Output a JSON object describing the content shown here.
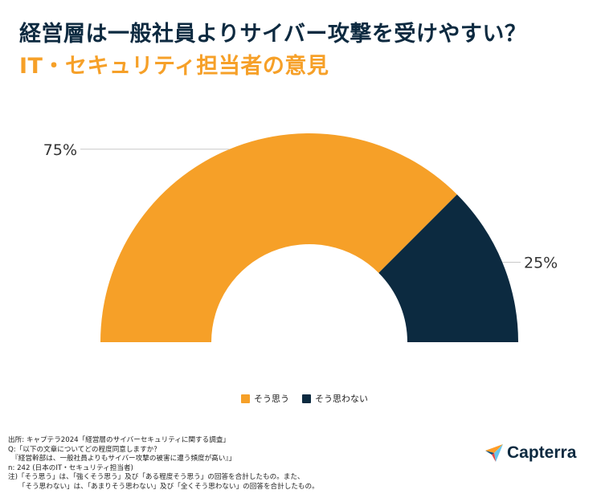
{
  "title": "経営層は一般社員よりサイバー攻撃を受けやすい？",
  "subtitle": "IT・セキュリティ担当者の意見",
  "colors": {
    "primary": "#f6a028",
    "secondary": "#0c2a40",
    "title": "#0d2a40",
    "leader": "#c9c9c9"
  },
  "chart_data": {
    "type": "pie",
    "variant": "semi-donut",
    "categories": [
      "そう思う",
      "そう思わない"
    ],
    "values": [
      75,
      25
    ],
    "labels": [
      "75%",
      "25%"
    ],
    "colors": [
      "#f6a028",
      "#0c2a40"
    ],
    "legend_position": "bottom-center"
  },
  "notes": [
    "出所: キャプテラ2024「経営層のサイバーセキュリティに関する調査」",
    "Q:「以下の文章についてどの程度同意しますか？",
    "　『経営幹部は、一般社員よりもサイバー攻撃の被害に遭う頻度が高い』」",
    "n: 242 (日本のIT・セキュリティ担当者)",
    "注)「そう思う」は、「強くそう思う」及び「ある程度そう思う」の回答を合計したもの。また、",
    "　　「そう思わない」は、「あまりそう思わない」及び「全くそう思わない」の回答を合計したもの。"
  ],
  "logo": {
    "text": "Capterra",
    "icon": "capterra-arrow-icon"
  }
}
